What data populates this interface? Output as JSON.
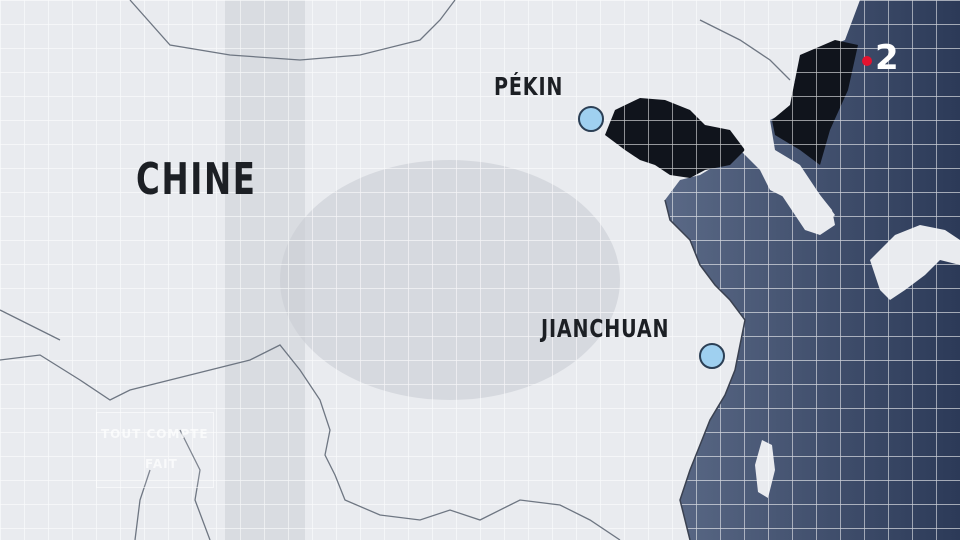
{
  "map": {
    "country_label": "CHINE",
    "cities": [
      {
        "name": "PÉKIN",
        "marker_color": "#9fd0f0"
      },
      {
        "name": "JIANCHUAN",
        "marker_color": "#9fd0f0"
      }
    ],
    "colors": {
      "land": "#e8eaee",
      "sea": "#4b5a78",
      "bohai_sea": "#10141c",
      "grid": "#ffffff",
      "borders": "#6e7682"
    }
  },
  "channel_logo": {
    "number": "2",
    "dot_color": "#e4132f",
    "icon": "france2-logo"
  },
  "watermark": {
    "line1": "TOUT COMPTE",
    "line2": "FAIT"
  }
}
